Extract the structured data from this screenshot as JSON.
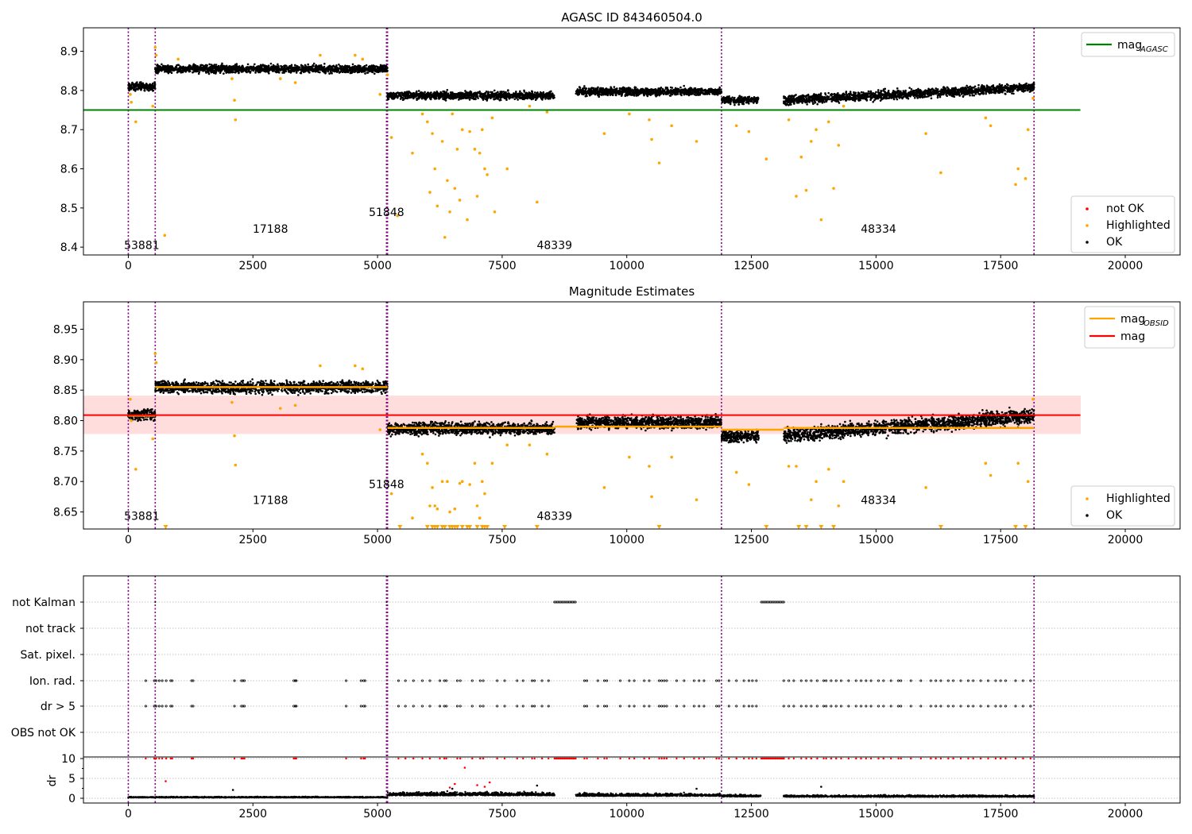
{
  "figure": {
    "vlines": [
      0,
      540,
      5180,
      5200,
      11900,
      18170
    ]
  },
  "chart_data": [
    {
      "type": "scatter",
      "title": "AGASC ID 843460504.0",
      "xlim": [
        -900,
        21100
      ],
      "ylim": [
        8.38,
        8.96
      ],
      "xticks": [
        "0",
        "2500",
        "5000",
        "7500",
        "10000",
        "12500",
        "15000",
        "17500",
        "20000"
      ],
      "xtick_values": [
        0,
        2500,
        5000,
        7500,
        10000,
        12500,
        15000,
        17500,
        20000
      ],
      "yticks": [
        "8.4",
        "8.5",
        "8.6",
        "8.7",
        "8.8",
        "8.9"
      ],
      "ytick_values": [
        8.4,
        8.5,
        8.6,
        8.7,
        8.8,
        8.9
      ],
      "reference_line": {
        "name": "mag_AGASC",
        "y": 8.75,
        "x": [
          -900,
          19100
        ],
        "color": "#008000"
      },
      "ok_segments": [
        {
          "x": [
            0,
            540
          ],
          "level": 8.81,
          "spread": 0.012
        },
        {
          "x": [
            540,
            5200
          ],
          "level": 8.855,
          "spread": 0.012
        },
        {
          "x": [
            5200,
            8550
          ],
          "level": 8.787,
          "spread": 0.012
        },
        {
          "x": [
            8980,
            11900
          ],
          "level": 8.797,
          "spread": 0.012
        },
        {
          "x": [
            11900,
            12650
          ],
          "level": 8.775,
          "spread": 0.012
        },
        {
          "x": [
            13150,
            18170
          ],
          "level_start": 8.775,
          "level_end": 8.808,
          "spread": 0.014
        }
      ],
      "highlighted_points": [
        [
          40,
          8.79
        ],
        [
          60,
          8.77
        ],
        [
          150,
          8.72
        ],
        [
          490,
          8.76
        ],
        [
          540,
          8.91
        ],
        [
          560,
          8.89
        ],
        [
          730,
          8.43
        ],
        [
          1000,
          8.88
        ],
        [
          2080,
          8.83
        ],
        [
          2130,
          8.775
        ],
        [
          2150,
          8.725
        ],
        [
          3050,
          8.83
        ],
        [
          3350,
          8.82
        ],
        [
          3850,
          8.89
        ],
        [
          4550,
          8.89
        ],
        [
          4700,
          8.88
        ],
        [
          5050,
          8.79
        ],
        [
          5200,
          8.84
        ],
        [
          5280,
          8.68
        ],
        [
          5400,
          8.48
        ],
        [
          5700,
          8.64
        ],
        [
          5900,
          8.74
        ],
        [
          6000,
          8.72
        ],
        [
          6050,
          8.54
        ],
        [
          6100,
          8.69
        ],
        [
          6150,
          8.6
        ],
        [
          6200,
          8.505
        ],
        [
          6300,
          8.67
        ],
        [
          6350,
          8.425
        ],
        [
          6400,
          8.57
        ],
        [
          6450,
          8.49
        ],
        [
          6500,
          8.74
        ],
        [
          6550,
          8.55
        ],
        [
          6600,
          8.65
        ],
        [
          6650,
          8.52
        ],
        [
          6700,
          8.7
        ],
        [
          6800,
          8.47
        ],
        [
          6850,
          8.695
        ],
        [
          6950,
          8.65
        ],
        [
          7000,
          8.53
        ],
        [
          7050,
          8.64
        ],
        [
          7100,
          8.7
        ],
        [
          7150,
          8.6
        ],
        [
          7200,
          8.585
        ],
        [
          7300,
          8.73
        ],
        [
          7350,
          8.49
        ],
        [
          7600,
          8.6
        ],
        [
          8050,
          8.76
        ],
        [
          8200,
          8.515
        ],
        [
          8400,
          8.745
        ],
        [
          9550,
          8.69
        ],
        [
          10050,
          8.74
        ],
        [
          10450,
          8.725
        ],
        [
          10500,
          8.675
        ],
        [
          10650,
          8.615
        ],
        [
          10900,
          8.71
        ],
        [
          11400,
          8.67
        ],
        [
          12200,
          8.71
        ],
        [
          12450,
          8.695
        ],
        [
          12800,
          8.625
        ],
        [
          13250,
          8.725
        ],
        [
          13400,
          8.53
        ],
        [
          13500,
          8.63
        ],
        [
          13600,
          8.545
        ],
        [
          13700,
          8.67
        ],
        [
          13800,
          8.7
        ],
        [
          13900,
          8.47
        ],
        [
          14050,
          8.72
        ],
        [
          14150,
          8.55
        ],
        [
          14250,
          8.66
        ],
        [
          14350,
          8.76
        ],
        [
          16000,
          8.69
        ],
        [
          16300,
          8.59
        ],
        [
          17200,
          8.73
        ],
        [
          17300,
          8.71
        ],
        [
          17800,
          8.56
        ],
        [
          17850,
          8.6
        ],
        [
          18000,
          8.575
        ],
        [
          18050,
          8.7
        ],
        [
          18150,
          8.78
        ]
      ],
      "not_ok_points": [],
      "annotations": [
        {
          "text": "53881",
          "x": 270,
          "y": 8.395
        },
        {
          "text": "17188",
          "x": 2850,
          "y": 8.437
        },
        {
          "text": "51848",
          "x": 5180,
          "y": 8.479
        },
        {
          "text": "48339",
          "x": 8550,
          "y": 8.395
        },
        {
          "text": "48334",
          "x": 15050,
          "y": 8.437
        }
      ],
      "legend_top": [
        {
          "label": "mag",
          "sub": "AGASC",
          "color": "#008000"
        }
      ],
      "legend_bottom": [
        {
          "label": "not OK",
          "color": "#ff0000"
        },
        {
          "label": "Highlighted",
          "color": "#ffa500"
        },
        {
          "label": "OK",
          "color": "#000000"
        }
      ]
    },
    {
      "type": "scatter",
      "title": "Magnitude Estimates",
      "xlim": [
        -900,
        21100
      ],
      "ylim": [
        8.622,
        8.995
      ],
      "xticks": [
        "0",
        "2500",
        "5000",
        "7500",
        "10000",
        "12500",
        "15000",
        "17500",
        "20000"
      ],
      "xtick_values": [
        0,
        2500,
        5000,
        7500,
        10000,
        12500,
        15000,
        17500,
        20000
      ],
      "yticks": [
        "8.65",
        "8.70",
        "8.75",
        "8.80",
        "8.85",
        "8.90",
        "8.95"
      ],
      "ytick_values": [
        8.65,
        8.7,
        8.75,
        8.8,
        8.85,
        8.9,
        8.95
      ],
      "mag_line": {
        "name": "mag",
        "y": 8.809,
        "x": [
          -900,
          19100
        ],
        "color": "#ff0000"
      },
      "mag_band": {
        "y": [
          8.778,
          8.841
        ],
        "x": [
          -900,
          19100
        ],
        "color": "#ffdddd"
      },
      "obsid_mags": [
        {
          "x": [
            0,
            540
          ],
          "y": 8.808
        },
        {
          "x": [
            540,
            5200
          ],
          "y": 8.855
        },
        {
          "x": [
            5200,
            8550
          ],
          "y": 8.788
        },
        {
          "x": [
            8550,
            8980
          ],
          "y": 8.79
        },
        {
          "x": [
            8980,
            11900
          ],
          "y": 8.79
        },
        {
          "x": [
            11900,
            13150
          ],
          "y": 8.785
        },
        {
          "x": [
            13150,
            18170
          ],
          "y": 8.788
        }
      ],
      "ok_segments": [
        {
          "x": [
            0,
            540
          ],
          "level": 8.81,
          "spread": 0.012
        },
        {
          "x": [
            540,
            5200
          ],
          "level": 8.855,
          "spread": 0.012
        },
        {
          "x": [
            5200,
            8550
          ],
          "level": 8.787,
          "spread": 0.012
        },
        {
          "x": [
            8980,
            11900
          ],
          "level": 8.797,
          "spread": 0.012
        },
        {
          "x": [
            11900,
            12650
          ],
          "level": 8.775,
          "spread": 0.012
        },
        {
          "x": [
            13150,
            18170
          ],
          "level_start": 8.775,
          "level_end": 8.808,
          "spread": 0.014
        }
      ],
      "highlighted_points": [
        [
          40,
          8.835
        ],
        [
          60,
          8.8
        ],
        [
          150,
          8.72
        ],
        [
          490,
          8.77
        ],
        [
          540,
          8.91
        ],
        [
          560,
          8.895
        ],
        [
          2080,
          8.83
        ],
        [
          2130,
          8.775
        ],
        [
          2150,
          8.727
        ],
        [
          3050,
          8.82
        ],
        [
          3350,
          8.825
        ],
        [
          3850,
          8.89
        ],
        [
          4550,
          8.89
        ],
        [
          4700,
          8.885
        ],
        [
          5050,
          8.785
        ],
        [
          5280,
          8.68
        ],
        [
          5700,
          8.64
        ],
        [
          5900,
          8.745
        ],
        [
          6000,
          8.73
        ],
        [
          6050,
          8.66
        ],
        [
          6100,
          8.69
        ],
        [
          6150,
          8.66
        ],
        [
          6200,
          8.655
        ],
        [
          6300,
          8.7
        ],
        [
          6400,
          8.7
        ],
        [
          6450,
          8.65
        ],
        [
          6550,
          8.655
        ],
        [
          6650,
          8.697
        ],
        [
          6700,
          8.7
        ],
        [
          6850,
          8.695
        ],
        [
          6950,
          8.73
        ],
        [
          7000,
          8.66
        ],
        [
          7050,
          8.64
        ],
        [
          7100,
          8.7
        ],
        [
          7150,
          8.68
        ],
        [
          7300,
          8.73
        ],
        [
          7600,
          8.76
        ],
        [
          8050,
          8.76
        ],
        [
          8400,
          8.745
        ],
        [
          9550,
          8.69
        ],
        [
          10050,
          8.74
        ],
        [
          10450,
          8.725
        ],
        [
          10500,
          8.675
        ],
        [
          10900,
          8.74
        ],
        [
          11400,
          8.67
        ],
        [
          12200,
          8.715
        ],
        [
          12450,
          8.695
        ],
        [
          13250,
          8.725
        ],
        [
          13400,
          8.725
        ],
        [
          13700,
          8.67
        ],
        [
          13800,
          8.7
        ],
        [
          14050,
          8.72
        ],
        [
          14250,
          8.66
        ],
        [
          14350,
          8.7
        ],
        [
          16000,
          8.69
        ],
        [
          17200,
          8.73
        ],
        [
          17300,
          8.71
        ],
        [
          17850,
          8.73
        ],
        [
          18050,
          8.7
        ],
        [
          18150,
          8.835
        ]
      ],
      "offscale_low": [
        750,
        5450,
        6000,
        6100,
        6150,
        6200,
        6300,
        6350,
        6450,
        6500,
        6550,
        6600,
        6700,
        6800,
        6850,
        7000,
        7100,
        7150,
        7200,
        7550,
        8200,
        10650,
        12800,
        13450,
        13600,
        13900,
        14150,
        16300,
        17800,
        18000
      ],
      "annotations": [
        {
          "text": "53881",
          "x": 270,
          "y": 8.637
        },
        {
          "text": "17188",
          "x": 2850,
          "y": 8.663
        },
        {
          "text": "51848",
          "x": 5180,
          "y": 8.689
        },
        {
          "text": "48339",
          "x": 8550,
          "y": 8.637
        },
        {
          "text": "48334",
          "x": 15050,
          "y": 8.663
        }
      ],
      "legend_top": [
        {
          "label": "mag",
          "sub": "OBSID",
          "color": "#ffa500"
        },
        {
          "label": "mag",
          "sub": "",
          "color": "#ff0000"
        }
      ],
      "legend_bottom": [
        {
          "label": "Highlighted",
          "color": "#ffa500"
        },
        {
          "label": "OK",
          "color": "#000000"
        }
      ]
    },
    {
      "type": "scatter",
      "xlim": [
        -900,
        21100
      ],
      "xticks": [
        "0",
        "2500",
        "5000",
        "7500",
        "10000",
        "12500",
        "15000",
        "17500",
        "20000"
      ],
      "xtick_values": [
        0,
        2500,
        5000,
        7500,
        10000,
        12500,
        15000,
        17500,
        20000
      ],
      "flag_rows": [
        "not Kalman",
        "not track",
        "Sat. pixel.",
        "Ion. rad.",
        "dr > 5",
        "OBS not OK"
      ],
      "not_kalman_ranges": [
        [
          8550,
          8980
        ],
        [
          12700,
          13150
        ]
      ],
      "flag_times": [
        350,
        520,
        560,
        620,
        680,
        760,
        850,
        880,
        1270,
        1300,
        2130,
        2270,
        2300,
        2330,
        3320,
        3350,
        3370,
        4370,
        4670,
        4720,
        4750,
        5420,
        5560,
        5720,
        5900,
        6050,
        6250,
        6340,
        6380,
        6600,
        6660,
        6900,
        7060,
        7120,
        7400,
        7550,
        7800,
        7920,
        8100,
        8150,
        8300,
        8430,
        9150,
        9200,
        9420,
        9550,
        9600,
        9870,
        10050,
        10150,
        10350,
        10450,
        10650,
        10700,
        10750,
        10800,
        11000,
        11150,
        11350,
        11450,
        11550,
        11800,
        11850,
        12050,
        12200,
        12350,
        12450,
        12520,
        12600,
        13150,
        13250,
        13350,
        13500,
        13600,
        13700,
        13820,
        13950,
        14000,
        14100,
        14200,
        14300,
        14450,
        14600,
        14700,
        14800,
        14900,
        15050,
        15150,
        15300,
        15450,
        15500,
        15700,
        15900,
        16100,
        16200,
        16300,
        16450,
        16550,
        16700,
        16850,
        16950,
        17100,
        17250,
        17400,
        17500,
        17600,
        17800,
        17950,
        18100
      ],
      "dr_panel": {
        "ylabel": "dr",
        "ylim": [
          -0.6,
          10.4
        ],
        "yticks": [
          "0",
          "5",
          "10"
        ],
        "ytick_values": [
          0,
          5,
          10
        ],
        "dr_segments": [
          {
            "x": [
              0,
              5200
            ],
            "level": 0.25
          },
          {
            "x": [
              5200,
              8550
            ],
            "level": 1.0
          },
          {
            "x": [
              8980,
              11900
            ],
            "level": 0.8
          },
          {
            "x": [
              11900,
              12700
            ],
            "level": 0.6
          },
          {
            "x": [
              13150,
              18170
            ],
            "level": 0.5
          }
        ],
        "dr_outliers_red": [
          [
            750,
            4.3
          ],
          [
            6550,
            3.6
          ],
          [
            6750,
            7.7
          ],
          [
            6450,
            2.7
          ],
          [
            7000,
            3.3
          ],
          [
            7150,
            2.9
          ],
          [
            7250,
            4.0
          ]
        ],
        "dr_outliers_black": [
          [
            2100,
            2.1
          ],
          [
            6500,
            2.4
          ],
          [
            8200,
            3.2
          ],
          [
            13900,
            2.9
          ],
          [
            11400,
            2.4
          ]
        ]
      }
    }
  ]
}
